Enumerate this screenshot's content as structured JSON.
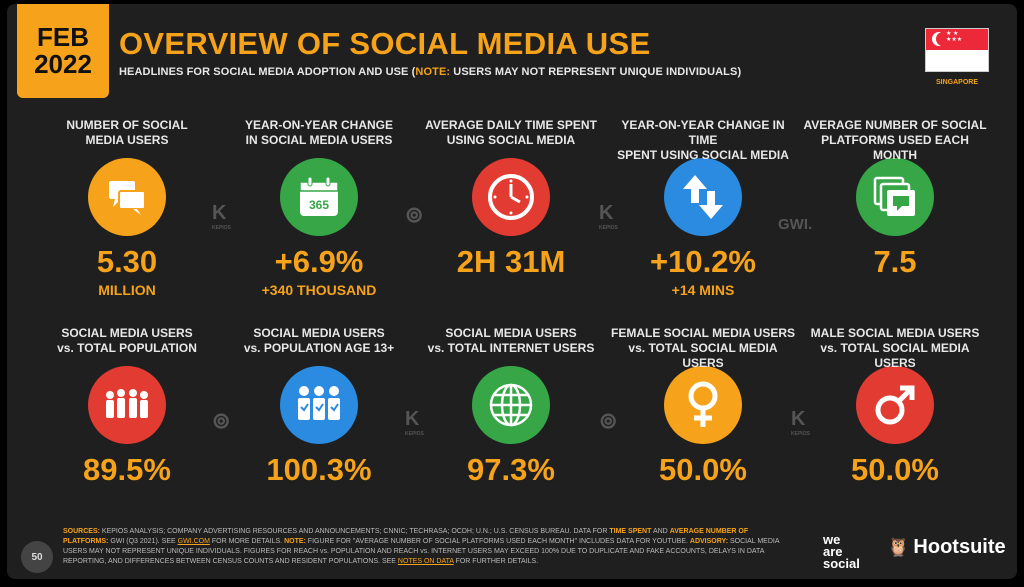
{
  "header": {
    "month": "FEB",
    "year": "2022",
    "title": "OVERVIEW OF SOCIAL MEDIA USE",
    "subtitle_pre": "HEADLINES FOR SOCIAL MEDIA ADOPTION AND USE (",
    "subtitle_note": "NOTE:",
    "subtitle_post": " USERS MAY NOT REPRESENT UNIQUE INDIVIDUALS)",
    "country": "SINGAPORE"
  },
  "row1": [
    {
      "label_1": "NUMBER OF SOCIAL",
      "label_2": "MEDIA USERS",
      "value": "5.30",
      "sub": "MILLION",
      "color": "#f6a31b",
      "icon": "chat-bubbles-icon"
    },
    {
      "label_1": "YEAR-ON-YEAR CHANGE",
      "label_2": "IN SOCIAL MEDIA USERS",
      "value": "+6.9%",
      "sub": "+340 THOUSAND",
      "color": "#36a647",
      "icon": "calendar-365-icon"
    },
    {
      "label_1": "AVERAGE DAILY TIME SPENT",
      "label_2": "USING SOCIAL MEDIA",
      "value": "2H 31M",
      "sub": "",
      "color": "#e23b32",
      "icon": "clock-icon"
    },
    {
      "label_1": "YEAR-ON-YEAR CHANGE IN TIME",
      "label_2": "SPENT USING SOCIAL MEDIA",
      "value": "+10.2%",
      "sub": "+14 MINS",
      "color": "#2a8be0",
      "icon": "up-down-arrows-icon"
    },
    {
      "label_1": "AVERAGE NUMBER OF SOCIAL",
      "label_2": "PLATFORMS USED EACH MONTH",
      "value": "7.5",
      "sub": "",
      "color": "#36a647",
      "icon": "stacked-chat-icon"
    }
  ],
  "row2": [
    {
      "label_1": "SOCIAL MEDIA USERS",
      "label_2": "vs. TOTAL POPULATION",
      "value": "89.5%",
      "color": "#e23b32",
      "icon": "people-group-icon"
    },
    {
      "label_1": "SOCIAL MEDIA USERS",
      "label_2": "vs. POPULATION AGE 13+",
      "value": "100.3%",
      "color": "#2a8be0",
      "icon": "adults-check-icon"
    },
    {
      "label_1": "SOCIAL MEDIA USERS",
      "label_2": "vs. TOTAL INTERNET USERS",
      "value": "97.3%",
      "color": "#36a647",
      "icon": "globe-icon"
    },
    {
      "label_1": "FEMALE SOCIAL MEDIA USERS",
      "label_2": "vs. TOTAL SOCIAL MEDIA USERS",
      "value": "50.0%",
      "color": "#f6a31b",
      "icon": "female-symbol-icon"
    },
    {
      "label_1": "MALE SOCIAL MEDIA USERS",
      "label_2": "vs. TOTAL SOCIAL MEDIA USERS",
      "value": "50.0%",
      "color": "#e23b32",
      "icon": "male-symbol-icon"
    }
  ],
  "separators": {
    "kepios": "KEPIOS",
    "gwi": "GWI."
  },
  "footer": {
    "sources_label": "SOURCES:",
    "line1": " KEPIOS ANALYSIS; COMPANY ADVERTISING RESOURCES AND ANNOUNCEMENTS; CNNIC; TECHRASA; OCDH; U.N.; U.S. CENSUS BUREAU. DATA FOR ",
    "time_spent": "TIME SPENT",
    "and": " AND ",
    "avg_platforms": "AVERAGE NUMBER OF PLATFORMS:",
    "line2": " GWI (Q3 2021). SEE ",
    "gwi_link": "GWI.COM",
    "line3": " FOR MORE DETAILS. ",
    "note_label": "NOTE:",
    "line4": " FIGURE FOR \"AVERAGE NUMBER OF SOCIAL PLATFORMS USED EACH MONTH\" INCLUDES DATA FOR YOUTUBE. ",
    "advisory_label": "ADVISORY:",
    "line5": " SOCIAL MEDIA USERS MAY NOT REPRESENT UNIQUE INDIVIDUALS. FIGURES FOR REACH vs. POPULATION AND REACH vs. INTERNET USERS MAY EXCEED 100% DUE TO DUPLICATE AND FAKE ACCOUNTS, DELAYS IN DATA REPORTING, AND DIFFERENCES BETWEEN CENSUS COUNTS AND RESIDENT POPULATIONS. SEE ",
    "notes_link": "NOTES ON DATA",
    "line6": " FOR FURTHER DETAILS.",
    "page_number": "50",
    "brand1_line1": "we",
    "brand1_line2": "are",
    "brand1_line3": "social",
    "brand2": "Hootsuite"
  }
}
